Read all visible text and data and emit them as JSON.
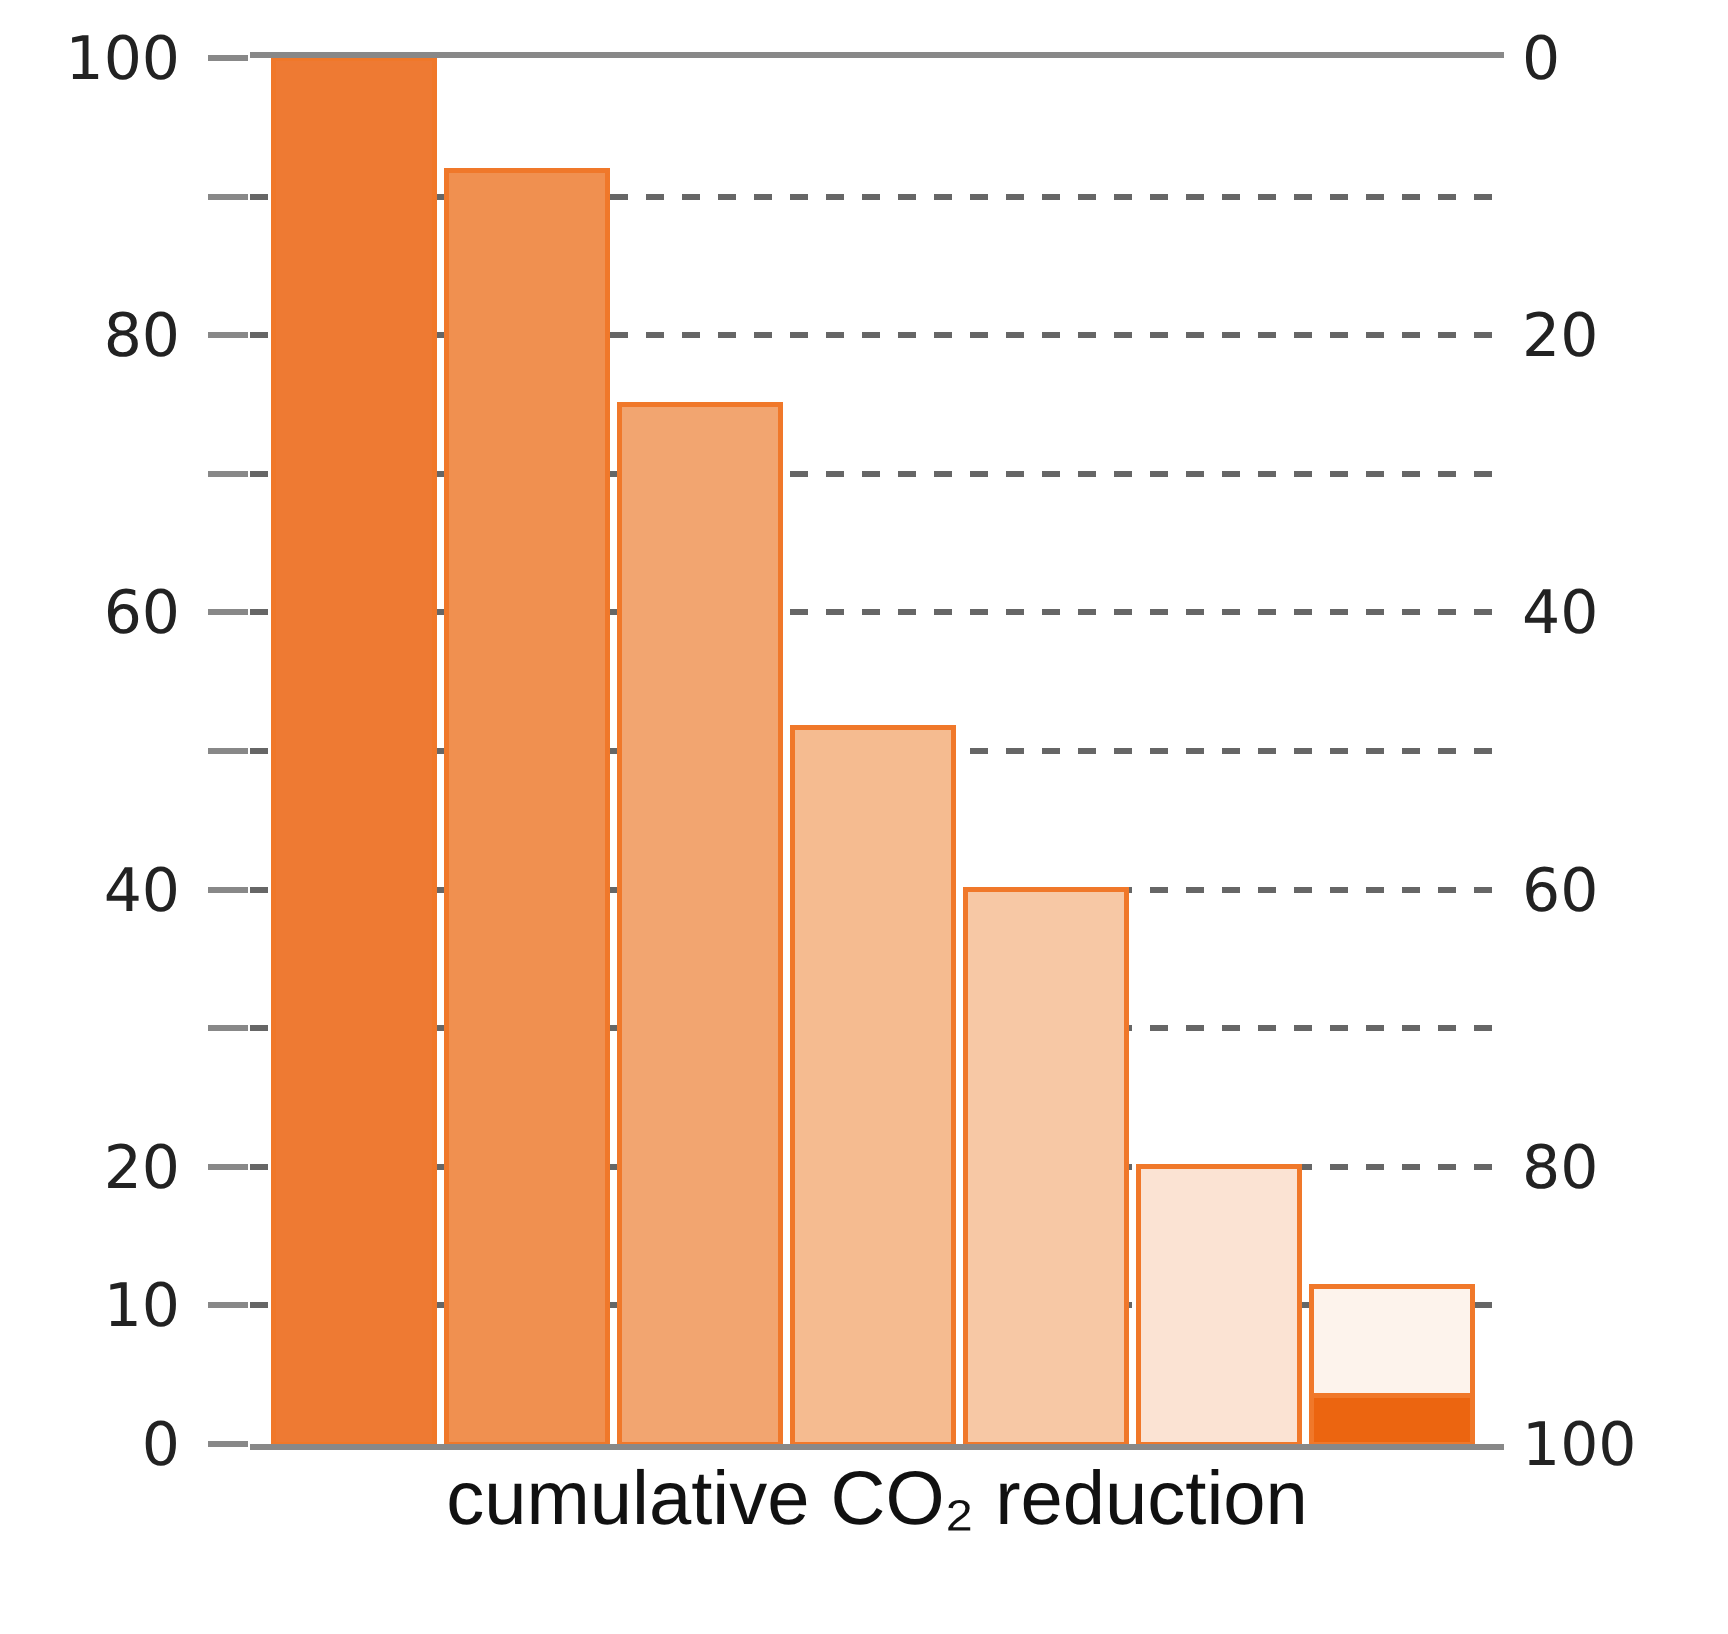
{
  "chart_data": {
    "type": "bar",
    "stacked": true,
    "xlabel": "cumulative CO₂ reduction",
    "categories": [
      null,
      null,
      null,
      null,
      null,
      null,
      null
    ],
    "series": [
      {
        "color": "#ec6510",
        "values": [
          null,
          null,
          null,
          null,
          null,
          null,
          3.5
        ]
      },
      {
        "colors": [
          "#ee7a33",
          "#f09050",
          "#f2a570",
          "#f5bb90",
          "#f7c8a5",
          "#fbe3d3",
          "#fdf3ec"
        ],
        "values": [
          100,
          91.9,
          75,
          51.7,
          40,
          20,
          7.9
        ]
      }
    ],
    "ylim": [
      0,
      100
    ],
    "yticks": [
      0,
      10,
      20,
      {
        "value": 30,
        "label": null
      },
      40,
      {
        "value": 50,
        "label": null
      },
      60,
      {
        "value": 70,
        "label": null
      },
      80,
      {
        "value": 90,
        "label": null
      },
      100
    ],
    "y2lim": [
      100,
      0
    ],
    "y2ticks": [
      0,
      {
        "value": 10,
        "label": null
      },
      20,
      {
        "value": 30,
        "label": null
      },
      40,
      {
        "value": 50,
        "label": null
      },
      60,
      {
        "value": 70,
        "label": null
      },
      80,
      {
        "value": 90,
        "label": null
      },
      100
    ],
    "grid": "y2",
    "line_style": "dashed"
  }
}
